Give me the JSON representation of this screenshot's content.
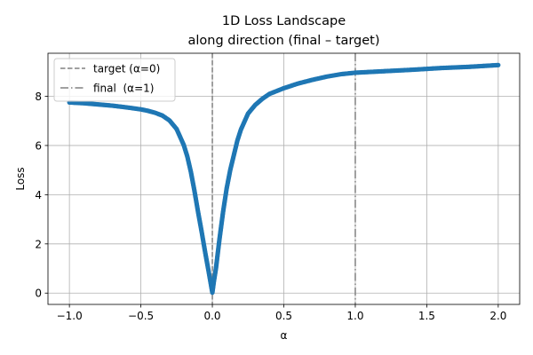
{
  "chart_data": {
    "type": "scatter",
    "title": [
      "1D Loss Landscape",
      "along direction (final – target)"
    ],
    "xlabel": "α",
    "ylabel": "Loss",
    "xlim": [
      -1.15,
      2.15
    ],
    "ylim": [
      -0.46,
      9.75
    ],
    "xticks": [
      -1.0,
      -0.5,
      0.0,
      0.5,
      1.0,
      1.5,
      2.0
    ],
    "xtick_labels": [
      "−1.0",
      "−0.5",
      "0.0",
      "0.5",
      "1.0",
      "1.5",
      "2.0"
    ],
    "yticks": [
      0,
      2,
      4,
      6,
      8
    ],
    "ytick_labels": [
      "0",
      "2",
      "4",
      "6",
      "8"
    ],
    "grid": true,
    "legend_position": "top-left",
    "series": [
      {
        "color": "#1f77b4",
        "marker": "circle",
        "points": [
          [
            -1.0,
            7.75
          ],
          [
            -0.9,
            7.72
          ],
          [
            -0.8,
            7.67
          ],
          [
            -0.7,
            7.62
          ],
          [
            -0.6,
            7.55
          ],
          [
            -0.5,
            7.47
          ],
          [
            -0.45,
            7.41
          ],
          [
            -0.4,
            7.33
          ],
          [
            -0.35,
            7.22
          ],
          [
            -0.3,
            7.02
          ],
          [
            -0.25,
            6.67
          ],
          [
            -0.2,
            6.02
          ],
          [
            -0.175,
            5.55
          ],
          [
            -0.15,
            4.92
          ],
          [
            -0.125,
            4.15
          ],
          [
            -0.1,
            3.3
          ],
          [
            -0.075,
            2.5
          ],
          [
            -0.05,
            1.65
          ],
          [
            -0.025,
            0.85
          ],
          [
            -0.01,
            0.35
          ],
          [
            0.0,
            0.02
          ],
          [
            0.01,
            0.45
          ],
          [
            0.025,
            1.0
          ],
          [
            0.05,
            2.2
          ],
          [
            0.075,
            3.3
          ],
          [
            0.1,
            4.25
          ],
          [
            0.125,
            5.0
          ],
          [
            0.15,
            5.6
          ],
          [
            0.175,
            6.2
          ],
          [
            0.2,
            6.65
          ],
          [
            0.25,
            7.3
          ],
          [
            0.3,
            7.65
          ],
          [
            0.35,
            7.9
          ],
          [
            0.4,
            8.1
          ],
          [
            0.5,
            8.33
          ],
          [
            0.6,
            8.52
          ],
          [
            0.7,
            8.67
          ],
          [
            0.8,
            8.8
          ],
          [
            0.9,
            8.9
          ],
          [
            1.0,
            8.96
          ],
          [
            1.2,
            9.02
          ],
          [
            1.4,
            9.08
          ],
          [
            1.6,
            9.15
          ],
          [
            1.8,
            9.2
          ],
          [
            2.0,
            9.27
          ]
        ]
      }
    ],
    "vlines": [
      {
        "x": 0.0,
        "style": "dashed",
        "color": "#808080",
        "label": "target (α=0)"
      },
      {
        "x": 1.0,
        "style": "dashdot",
        "color": "#808080",
        "label": "final  (α=1)"
      }
    ]
  }
}
